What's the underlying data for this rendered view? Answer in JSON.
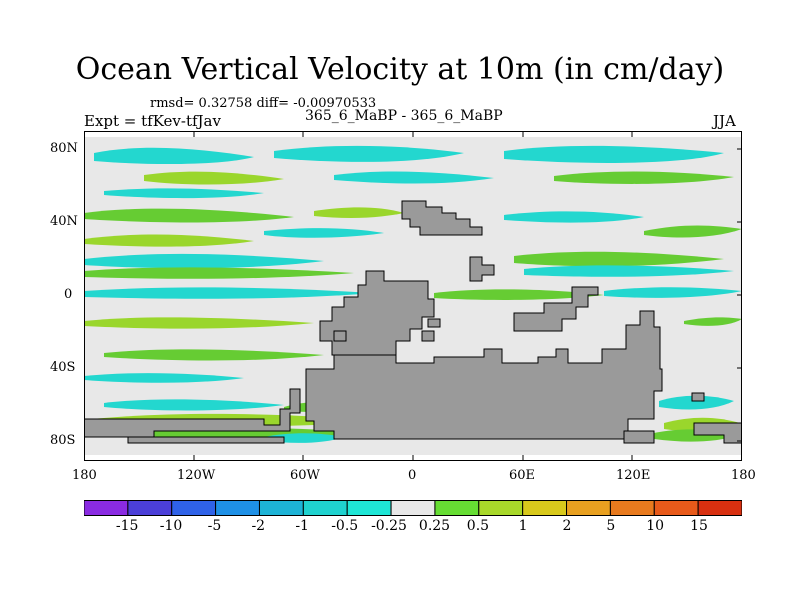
{
  "title": "Ocean Vertical Velocity at 10m (in cm/day)",
  "stats": "rmsd= 0.32758  diff= -0.00970533",
  "experiment": "Expt = tfKev-tfJav",
  "case_label": "365_6_MaBP - 365_6_MaBP",
  "season": "JJA",
  "lat_labels": [
    "80N",
    "40N",
    "0",
    "40S",
    "80S"
  ],
  "lon_labels": [
    "180",
    "120W",
    "60W",
    "0",
    "60E",
    "120E",
    "180"
  ],
  "colorbar": {
    "labels": [
      "-15",
      "-10",
      "-5",
      "-2",
      "-1",
      "-0.5",
      "-0.25",
      "0.25",
      "0.5",
      "1",
      "2",
      "5",
      "10",
      "15"
    ],
    "colors": [
      "#8a2be2",
      "#4b3fd8",
      "#2f62e8",
      "#1e90e6",
      "#1db3d6",
      "#1fd2cf",
      "#1ee6d6",
      "#e8e8e8",
      "#66dd33",
      "#a8d82a",
      "#d8c91c",
      "#e8a020",
      "#e87a1e",
      "#e85a1a",
      "#d83010"
    ]
  },
  "colors": {
    "land": "#9a9a9a",
    "ocean_neutral": "#e8e8e8",
    "upwelling_weak": "#9ad62c",
    "upwelling_green": "#66cc33",
    "downwelling_weak": "#23d7cf",
    "downwelling": "#18b7d8"
  }
}
